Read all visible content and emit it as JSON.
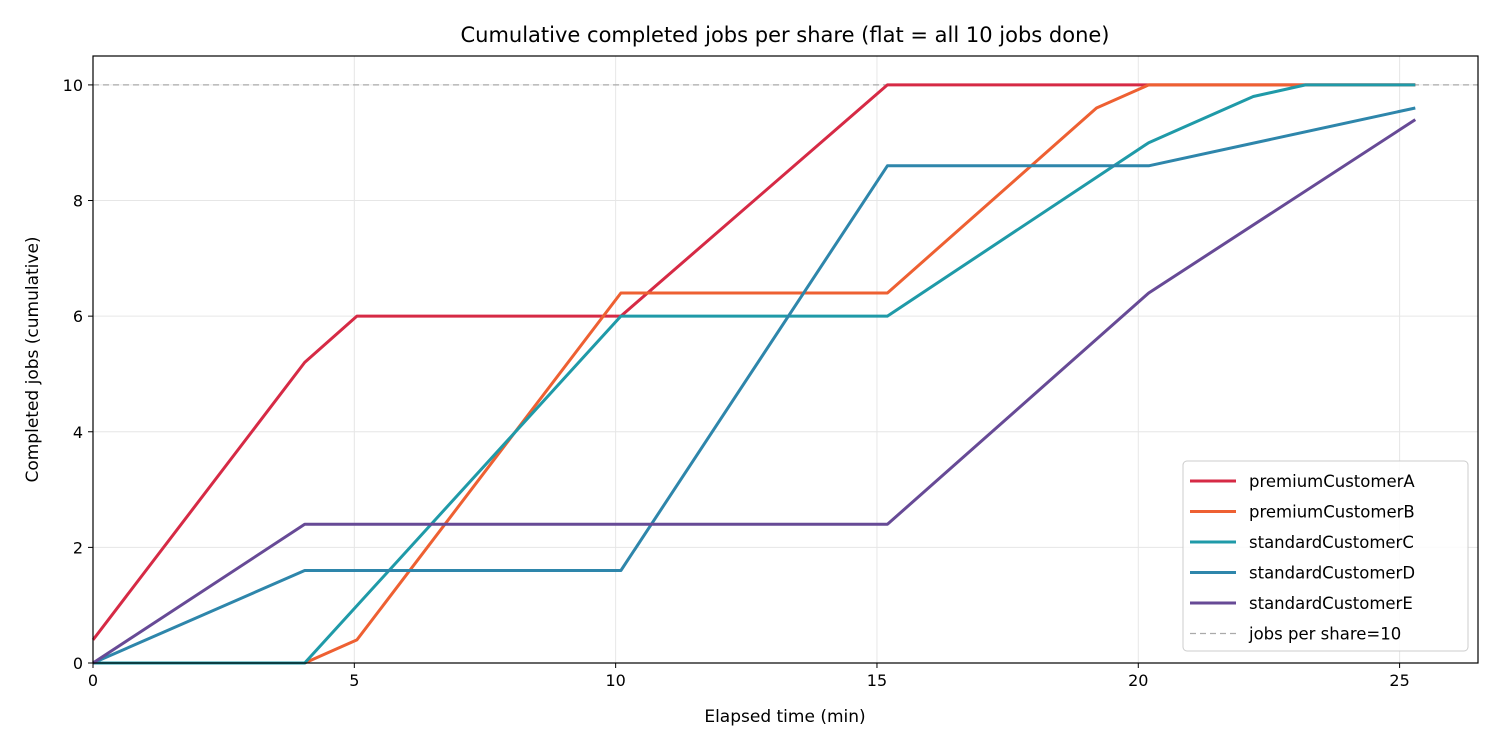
{
  "chart_data": {
    "type": "line",
    "title": "Cumulative completed jobs per share (flat = all 10 jobs done)",
    "xlabel": "Elapsed time (min)",
    "ylabel": "Completed jobs (cumulative)",
    "xlim": [
      0,
      26.5
    ],
    "ylim": [
      0,
      10.5
    ],
    "xticks": [
      0,
      5,
      10,
      15,
      20,
      25
    ],
    "yticks": [
      0,
      2,
      4,
      6,
      8,
      10
    ],
    "grid": true,
    "legend_position": "lower-right",
    "series": [
      {
        "name": "premiumCustomerA",
        "color": "#d62a45",
        "x": [
          0,
          4.05,
          5.05,
          10.1,
          15.2,
          20.2,
          25.3
        ],
        "y": [
          0.4,
          5.2,
          6.0,
          6.0,
          10.0,
          10.0,
          10.0
        ]
      },
      {
        "name": "premiumCustomerB",
        "color": "#ee6032",
        "x": [
          0,
          4.05,
          5.05,
          10.1,
          15.2,
          19.2,
          20.2,
          25.3
        ],
        "y": [
          0,
          0,
          0.4,
          6.4,
          6.4,
          9.6,
          10.0,
          10.0
        ]
      },
      {
        "name": "standardCustomerC",
        "color": "#1f9aa8",
        "x": [
          0,
          4.05,
          10.1,
          15.2,
          20.2,
          22.2,
          23.2,
          25.3
        ],
        "y": [
          0,
          0,
          6.0,
          6.0,
          9.0,
          9.8,
          10.0,
          10.0
        ]
      },
      {
        "name": "standardCustomerD",
        "color": "#2e86ab",
        "x": [
          0,
          4.05,
          10.1,
          15.2,
          20.2,
          25.3
        ],
        "y": [
          0,
          1.6,
          1.6,
          8.6,
          8.6,
          9.6
        ]
      },
      {
        "name": "standardCustomerE",
        "color": "#674a96",
        "x": [
          0,
          4.05,
          15.2,
          20.2,
          25.3
        ],
        "y": [
          0,
          2.4,
          2.4,
          6.4,
          9.4
        ]
      }
    ],
    "reference_line": {
      "name": "jobs per share=10",
      "y": 10,
      "color": "#aaaaaa",
      "style": "dashed"
    }
  }
}
